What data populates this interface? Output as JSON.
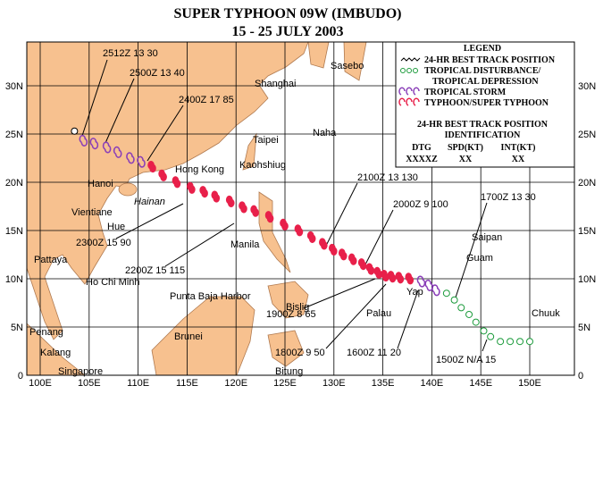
{
  "header": {
    "title": "SUPER TYPHOON 09W (IMBUDO)",
    "subtitle": "15 - 25 JULY 2003"
  },
  "map": {
    "lon_ticks": [
      {
        "value": 100,
        "label": "100E"
      },
      {
        "value": 105,
        "label": "105E"
      },
      {
        "value": 110,
        "label": "110E"
      },
      {
        "value": 115,
        "label": "115E"
      },
      {
        "value": 120,
        "label": "120E"
      },
      {
        "value": 125,
        "label": "125E"
      },
      {
        "value": 130,
        "label": "130E"
      },
      {
        "value": 135,
        "label": "135E"
      },
      {
        "value": 140,
        "label": "140E"
      },
      {
        "value": 145,
        "label": "145E"
      },
      {
        "value": 150,
        "label": "150E"
      }
    ],
    "lat_ticks": [
      {
        "value": 0,
        "label": "0"
      },
      {
        "value": 5,
        "label": "5N"
      },
      {
        "value": 10,
        "label": "10N"
      },
      {
        "value": 15,
        "label": "15N"
      },
      {
        "value": 20,
        "label": "20N"
      },
      {
        "value": 25,
        "label": "25N"
      },
      {
        "value": 30,
        "label": "30N"
      }
    ],
    "places": [
      "Shanghai",
      "Sasebo",
      "Naha",
      "Taipei",
      "Kaohshiug",
      "Hong Kong",
      "Hanoi",
      "Hainan",
      "Vientiane",
      "Hue",
      "Pattaya",
      "Ho Chi Minh",
      "Manila",
      "Punta Baja Harbor",
      "Bislig",
      "Palau",
      "Yap",
      "Guam",
      "Saipan",
      "Chuuk",
      "Brunei",
      "Penang",
      "Kalang",
      "Singapore",
      "Bitung"
    ],
    "annotations": [
      "2512Z 13 30",
      "2500Z 13 40",
      "2400Z 17 85",
      "2100Z 13 130",
      "2000Z 9 100",
      "1700Z 13 30",
      "2300Z 15 90",
      "2200Z 15 115",
      "1900Z 8 65",
      "1800Z 9 50",
      "1600Z 11 20",
      "1500Z N/A 15"
    ],
    "track": {
      "depression_start": [
        [
          150,
          3.5
        ],
        [
          149,
          3.5
        ],
        [
          148,
          3.5
        ],
        [
          147,
          3.5
        ],
        [
          146,
          4
        ],
        [
          145.3,
          4.6
        ],
        [
          144.5,
          5.5
        ],
        [
          143.8,
          6.3
        ],
        [
          143,
          7
        ],
        [
          142.3,
          7.8
        ],
        [
          141.5,
          8.5
        ]
      ],
      "storm_start": [
        [
          140.5,
          9
        ],
        [
          139.8,
          9.5
        ],
        [
          139,
          9.9
        ]
      ],
      "typhoon": [
        [
          137.8,
          10.2
        ],
        [
          136.8,
          10.3
        ],
        [
          136,
          10.4
        ],
        [
          135.3,
          10.5
        ],
        [
          134.6,
          10.8
        ],
        [
          133.8,
          11.2
        ],
        [
          133,
          11.7
        ],
        [
          132,
          12.2
        ],
        [
          131,
          12.7
        ],
        [
          130,
          13.2
        ],
        [
          129,
          13.8
        ],
        [
          127.8,
          14.5
        ],
        [
          126.5,
          15.2
        ],
        [
          125,
          15.8
        ],
        [
          123.5,
          16.6
        ],
        [
          122,
          17.2
        ],
        [
          120.8,
          17.6
        ],
        [
          119.5,
          18.2
        ],
        [
          118,
          18.7
        ],
        [
          116.8,
          19.2
        ],
        [
          115.5,
          19.6
        ],
        [
          114,
          20.2
        ],
        [
          112.6,
          20.9
        ],
        [
          111.5,
          21.8
        ]
      ],
      "storm_end": [
        [
          110.4,
          22.3
        ],
        [
          109.3,
          22.7
        ],
        [
          108,
          23.3
        ],
        [
          106.9,
          23.8
        ],
        [
          105.6,
          24.2
        ],
        [
          104.5,
          24.5
        ]
      ],
      "end_point": [
        103.5,
        25.3
      ]
    }
  },
  "legend": {
    "title": "LEGEND",
    "items": [
      "24-HR BEST TRACK POSITION",
      "TROPICAL DISTURBANCE/",
      "TROPICAL DEPRESSION",
      "TROPICAL STORM",
      "TYPHOON/SUPER TYPHOON"
    ],
    "id_title": [
      "24-HR BEST TRACK POSITION",
      "IDENTIFICATION"
    ],
    "columns": [
      "DTG",
      "SPD(KT)",
      "INT(KT)"
    ],
    "formats": [
      "XXXXZ",
      "XX",
      "XX"
    ]
  }
}
